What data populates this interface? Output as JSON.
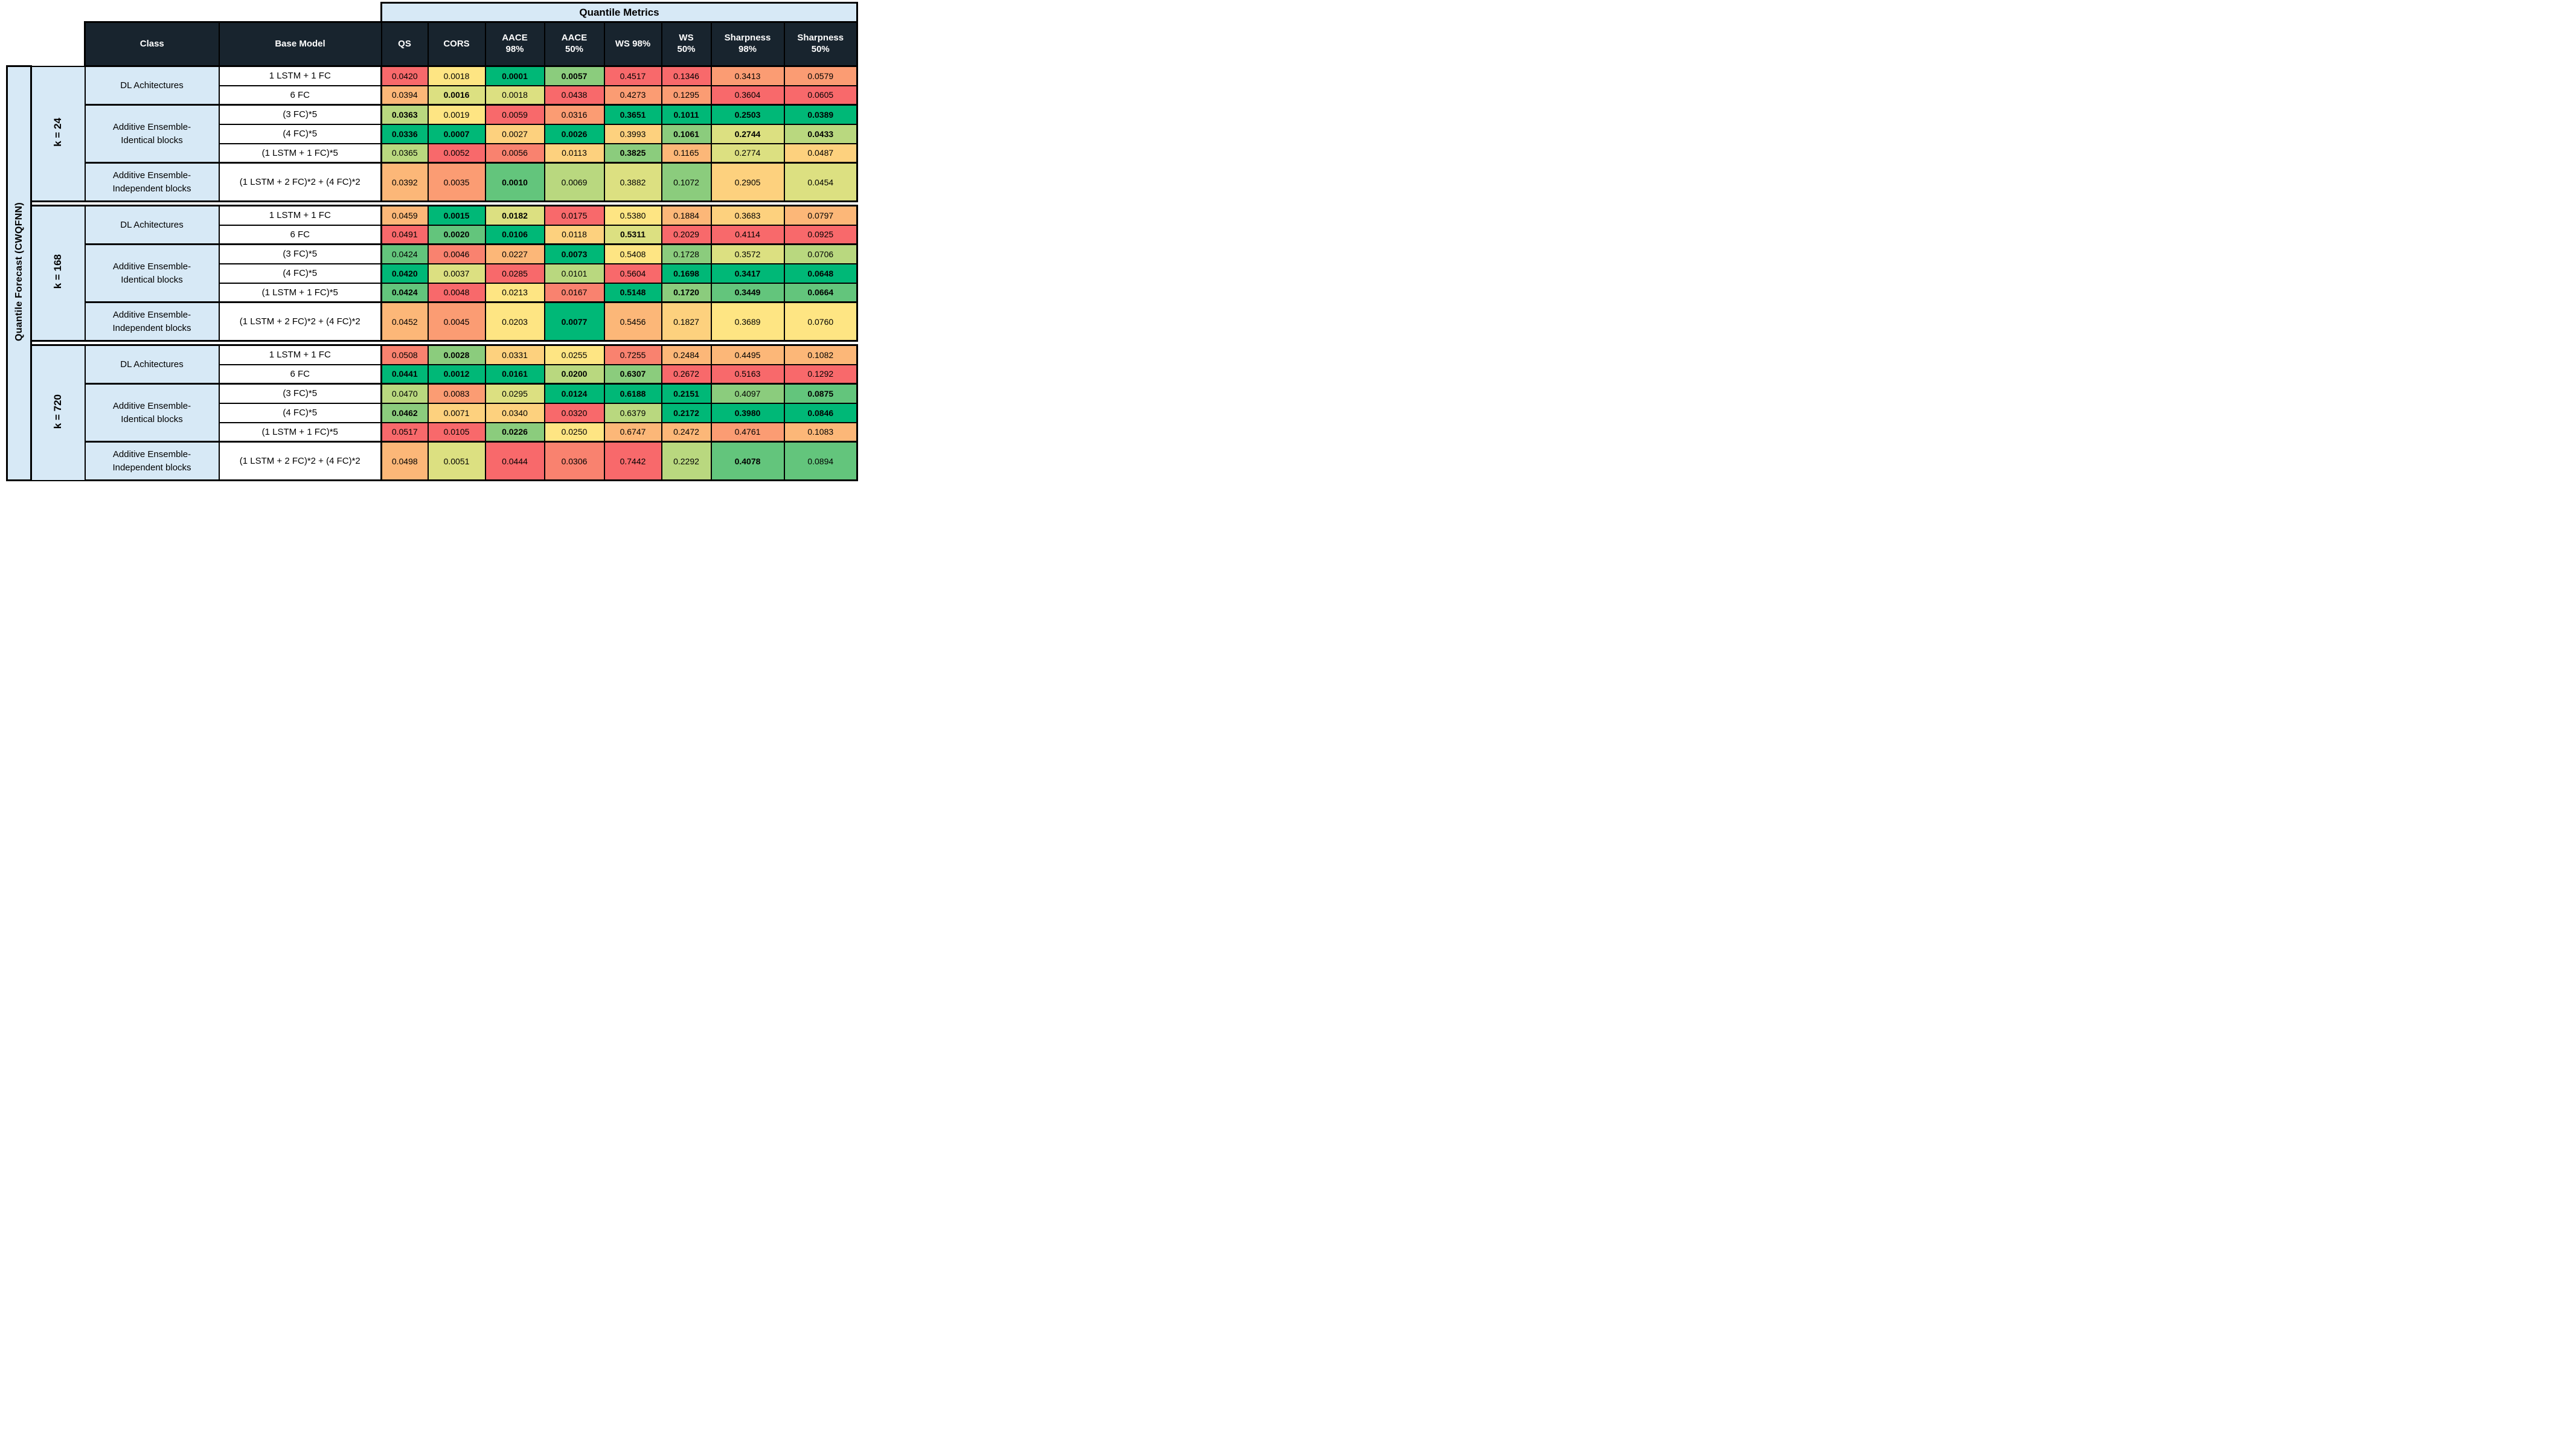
{
  "table_title": "Quantile Metrics",
  "left_label": "Quantile Forecast (CWQFNN)",
  "headers": {
    "class_col": "Class",
    "base_model": "Base Model",
    "metrics": [
      "QS",
      "CORS",
      "AACE\n98%",
      "AACE\n50%",
      "WS 98%",
      "WS\n50%",
      "Sharpness\n98%",
      "Sharpness\n50%"
    ]
  },
  "colors": {
    "header_bg": "#18242E",
    "header_text": "#FFFFFF",
    "band_bg": "#D7E9F6",
    "border": "#000000"
  },
  "palette": {
    "r": "#F8696B",
    "s": "#F9826F",
    "o": "#FB9C73",
    "oa": "#FCB778",
    "a": "#FDD17E",
    "y": "#FEE583",
    "yg": "#DCE081",
    "lg": "#B9D87F",
    "mg": "#8BCC7D",
    "g": "#63C57C",
    "bg": "#00B877"
  },
  "class_labels": {
    "dl": "DL Achitectures",
    "ident": "Additive Ensemble-\nIdentical blocks",
    "indep": "Additive Ensemble-\nIndependent blocks"
  },
  "groups": [
    {
      "k": "k = 24",
      "rows": [
        {
          "model": "1 LSTM + 1 FC",
          "cells": [
            [
              "0.0420",
              "r",
              0
            ],
            [
              "0.0018",
              "y",
              0
            ],
            [
              "0.0001",
              "bg",
              1
            ],
            [
              "0.0057",
              "mg",
              1
            ],
            [
              "0.4517",
              "r",
              0
            ],
            [
              "0.1346",
              "r",
              0
            ],
            [
              "0.3413",
              "o",
              0
            ],
            [
              "0.0579",
              "o",
              0
            ]
          ]
        },
        {
          "model": "6 FC",
          "cells": [
            [
              "0.0394",
              "oa",
              0
            ],
            [
              "0.0016",
              "yg",
              1
            ],
            [
              "0.0018",
              "yg",
              0
            ],
            [
              "0.0438",
              "r",
              0
            ],
            [
              "0.4273",
              "o",
              0
            ],
            [
              "0.1295",
              "o",
              0
            ],
            [
              "0.3604",
              "r",
              0
            ],
            [
              "0.0605",
              "r",
              0
            ]
          ]
        },
        {
          "model": "(3 FC)*5",
          "cells": [
            [
              "0.0363",
              "lg",
              1
            ],
            [
              "0.0019",
              "y",
              0
            ],
            [
              "0.0059",
              "r",
              0
            ],
            [
              "0.0316",
              "o",
              0
            ],
            [
              "0.3651",
              "bg",
              1
            ],
            [
              "0.1011",
              "bg",
              1
            ],
            [
              "0.2503",
              "bg",
              1
            ],
            [
              "0.0389",
              "bg",
              1
            ]
          ]
        },
        {
          "model": "(4 FC)*5",
          "cells": [
            [
              "0.0336",
              "bg",
              1
            ],
            [
              "0.0007",
              "bg",
              1
            ],
            [
              "0.0027",
              "a",
              0
            ],
            [
              "0.0026",
              "bg",
              1
            ],
            [
              "0.3993",
              "a",
              0
            ],
            [
              "0.1061",
              "mg",
              1
            ],
            [
              "0.2744",
              "yg",
              1
            ],
            [
              "0.0433",
              "lg",
              1
            ]
          ]
        },
        {
          "model": "(1 LSTM + 1 FC)*5",
          "cells": [
            [
              "0.0365",
              "lg",
              0
            ],
            [
              "0.0052",
              "r",
              0
            ],
            [
              "0.0056",
              "s",
              0
            ],
            [
              "0.0113",
              "a",
              0
            ],
            [
              "0.3825",
              "mg",
              1
            ],
            [
              "0.1165",
              "oa",
              0
            ],
            [
              "0.2774",
              "yg",
              0
            ],
            [
              "0.0487",
              "a",
              0
            ]
          ]
        },
        {
          "model": "(1 LSTM + 2 FC)*2 + (4 FC)*2",
          "cells": [
            [
              "0.0392",
              "oa",
              0
            ],
            [
              "0.0035",
              "o",
              0
            ],
            [
              "0.0010",
              "g",
              1
            ],
            [
              "0.0069",
              "lg",
              0
            ],
            [
              "0.3882",
              "yg",
              0
            ],
            [
              "0.1072",
              "mg",
              0
            ],
            [
              "0.2905",
              "a",
              0
            ],
            [
              "0.0454",
              "yg",
              0
            ]
          ]
        }
      ]
    },
    {
      "k": "k = 168",
      "rows": [
        {
          "model": "1 LSTM + 1 FC",
          "cells": [
            [
              "0.0459",
              "oa",
              0
            ],
            [
              "0.0015",
              "bg",
              1
            ],
            [
              "0.0182",
              "yg",
              1
            ],
            [
              "0.0175",
              "r",
              0
            ],
            [
              "0.5380",
              "y",
              0
            ],
            [
              "0.1884",
              "oa",
              0
            ],
            [
              "0.3683",
              "a",
              0
            ],
            [
              "0.0797",
              "oa",
              0
            ]
          ]
        },
        {
          "model": "6 FC",
          "cells": [
            [
              "0.0491",
              "r",
              0
            ],
            [
              "0.0020",
              "g",
              1
            ],
            [
              "0.0106",
              "bg",
              1
            ],
            [
              "0.0118",
              "a",
              0
            ],
            [
              "0.5311",
              "yg",
              1
            ],
            [
              "0.2029",
              "r",
              0
            ],
            [
              "0.4114",
              "r",
              0
            ],
            [
              "0.0925",
              "r",
              0
            ]
          ]
        },
        {
          "model": "(3 FC)*5",
          "cells": [
            [
              "0.0424",
              "g",
              0
            ],
            [
              "0.0046",
              "s",
              0
            ],
            [
              "0.0227",
              "oa",
              0
            ],
            [
              "0.0073",
              "bg",
              1
            ],
            [
              "0.5408",
              "y",
              0
            ],
            [
              "0.1728",
              "mg",
              0
            ],
            [
              "0.3572",
              "yg",
              0
            ],
            [
              "0.0706",
              "lg",
              0
            ]
          ]
        },
        {
          "model": "(4 FC)*5",
          "cells": [
            [
              "0.0420",
              "bg",
              1
            ],
            [
              "0.0037",
              "yg",
              0
            ],
            [
              "0.0285",
              "r",
              0
            ],
            [
              "0.0101",
              "lg",
              0
            ],
            [
              "0.5604",
              "r",
              0
            ],
            [
              "0.1698",
              "bg",
              1
            ],
            [
              "0.3417",
              "bg",
              1
            ],
            [
              "0.0648",
              "bg",
              1
            ]
          ]
        },
        {
          "model": "(1 LSTM + 1 FC)*5",
          "cells": [
            [
              "0.0424",
              "g",
              1
            ],
            [
              "0.0048",
              "r",
              0
            ],
            [
              "0.0213",
              "y",
              0
            ],
            [
              "0.0167",
              "s",
              0
            ],
            [
              "0.5148",
              "bg",
              1
            ],
            [
              "0.1720",
              "mg",
              1
            ],
            [
              "0.3449",
              "g",
              1
            ],
            [
              "0.0664",
              "g",
              1
            ]
          ]
        },
        {
          "model": "(1 LSTM + 2 FC)*2 + (4 FC)*2",
          "cells": [
            [
              "0.0452",
              "oa",
              0
            ],
            [
              "0.0045",
              "o",
              0
            ],
            [
              "0.0203",
              "y",
              0
            ],
            [
              "0.0077",
              "bg",
              1
            ],
            [
              "0.5456",
              "oa",
              0
            ],
            [
              "0.1827",
              "a",
              0
            ],
            [
              "0.3689",
              "y",
              0
            ],
            [
              "0.0760",
              "y",
              0
            ]
          ]
        }
      ]
    },
    {
      "k": "k = 720",
      "rows": [
        {
          "model": "1 LSTM + 1 FC",
          "cells": [
            [
              "0.0508",
              "s",
              0
            ],
            [
              "0.0028",
              "mg",
              1
            ],
            [
              "0.0331",
              "a",
              0
            ],
            [
              "0.0255",
              "y",
              0
            ],
            [
              "0.7255",
              "s",
              0
            ],
            [
              "0.2484",
              "oa",
              0
            ],
            [
              "0.4495",
              "oa",
              0
            ],
            [
              "0.1082",
              "oa",
              0
            ]
          ]
        },
        {
          "model": "6 FC",
          "cells": [
            [
              "0.0441",
              "bg",
              1
            ],
            [
              "0.0012",
              "bg",
              1
            ],
            [
              "0.0161",
              "bg",
              1
            ],
            [
              "0.0200",
              "lg",
              1
            ],
            [
              "0.6307",
              "mg",
              1
            ],
            [
              "0.2672",
              "r",
              0
            ],
            [
              "0.5163",
              "r",
              0
            ],
            [
              "0.1292",
              "r",
              0
            ]
          ]
        },
        {
          "model": "(3 FC)*5",
          "cells": [
            [
              "0.0470",
              "lg",
              0
            ],
            [
              "0.0083",
              "o",
              0
            ],
            [
              "0.0295",
              "yg",
              0
            ],
            [
              "0.0124",
              "bg",
              1
            ],
            [
              "0.6188",
              "bg",
              1
            ],
            [
              "0.2151",
              "bg",
              1
            ],
            [
              "0.4097",
              "mg",
              0
            ],
            [
              "0.0875",
              "g",
              1
            ]
          ]
        },
        {
          "model": "(4 FC)*5",
          "cells": [
            [
              "0.0462",
              "mg",
              1
            ],
            [
              "0.0071",
              "a",
              0
            ],
            [
              "0.0340",
              "a",
              0
            ],
            [
              "0.0320",
              "r",
              0
            ],
            [
              "0.6379",
              "lg",
              0
            ],
            [
              "0.2172",
              "bg",
              1
            ],
            [
              "0.3980",
              "bg",
              1
            ],
            [
              "0.0846",
              "bg",
              1
            ]
          ]
        },
        {
          "model": "(1 LSTM + 1 FC)*5",
          "cells": [
            [
              "0.0517",
              "r",
              0
            ],
            [
              "0.0105",
              "r",
              0
            ],
            [
              "0.0226",
              "mg",
              1
            ],
            [
              "0.0250",
              "y",
              0
            ],
            [
              "0.6747",
              "oa",
              0
            ],
            [
              "0.2472",
              "oa",
              0
            ],
            [
              "0.4761",
              "o",
              0
            ],
            [
              "0.1083",
              "oa",
              0
            ]
          ]
        },
        {
          "model": "(1 LSTM + 2 FC)*2 + (4 FC)*2",
          "cells": [
            [
              "0.0498",
              "oa",
              0
            ],
            [
              "0.0051",
              "yg",
              0
            ],
            [
              "0.0444",
              "r",
              0
            ],
            [
              "0.0306",
              "s",
              0
            ],
            [
              "0.7442",
              "r",
              0
            ],
            [
              "0.2292",
              "lg",
              0
            ],
            [
              "0.4078",
              "g",
              1
            ],
            [
              "0.0894",
              "g",
              0
            ]
          ]
        }
      ]
    }
  ]
}
